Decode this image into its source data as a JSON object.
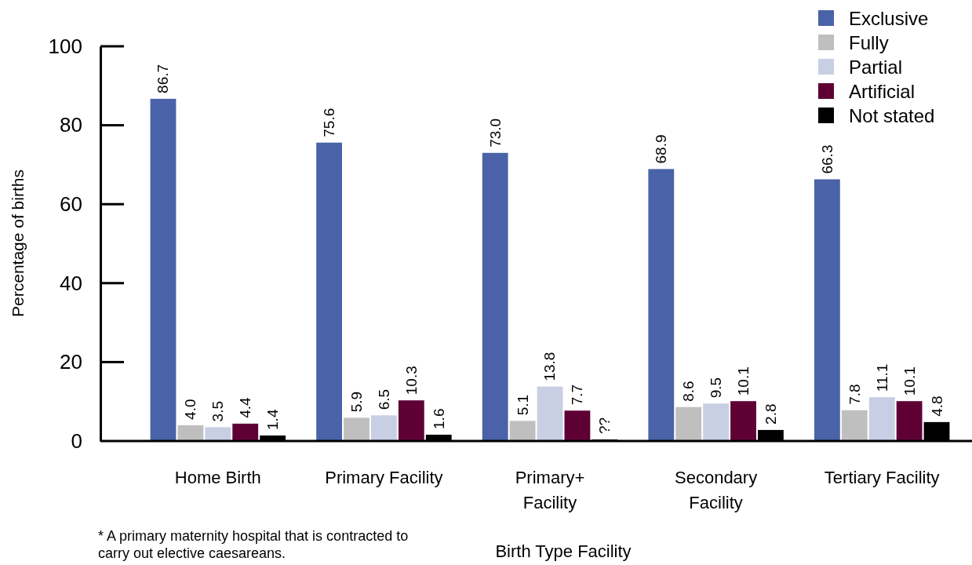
{
  "chart_data": {
    "type": "bar",
    "xlabel": "Birth Type Facility",
    "ylabel": "Percentage of births",
    "categories": [
      "Home Birth",
      "Primary Facility",
      "Primary+\nFacility",
      "Secondary\nFacility",
      "Tertiary Facility"
    ],
    "series": [
      {
        "name": "Exclusive",
        "color": "#4a63a8",
        "values": [
          86.7,
          75.6,
          73.0,
          68.9,
          66.3
        ],
        "value_labels": [
          "86.7",
          "75.6",
          "73.0",
          "68.9",
          "66.3"
        ]
      },
      {
        "name": "Fully",
        "color": "#bfbfbf",
        "values": [
          4.0,
          5.9,
          5.1,
          8.6,
          7.8
        ],
        "value_labels": [
          "4.0",
          "5.9",
          "5.1",
          "8.6",
          "7.8"
        ]
      },
      {
        "name": "Partial",
        "color": "#c8cfe4",
        "values": [
          3.5,
          6.5,
          13.8,
          9.5,
          11.1
        ],
        "value_labels": [
          "3.5",
          "6.5",
          "13.8",
          "9.5",
          "11.1"
        ]
      },
      {
        "name": "Artificial",
        "color": "#5f0035",
        "values": [
          4.4,
          10.3,
          7.7,
          10.1,
          10.1
        ],
        "value_labels": [
          "4.4",
          "10.3",
          "7.7",
          "10.1",
          "10.1"
        ]
      },
      {
        "name": "Not stated",
        "color": "#000000",
        "values": [
          1.4,
          1.6,
          0.4,
          2.8,
          4.8
        ],
        "value_labels": [
          "1.4",
          "1.6",
          "??",
          "2.8",
          "4.8"
        ]
      }
    ],
    "ylim": [
      0,
      100
    ],
    "yticks": [
      0,
      20,
      40,
      60,
      80,
      100
    ],
    "legend": "top right",
    "annotations": [
      "* A primary maternity hospital that is contracted to carry out elective caesareans."
    ]
  }
}
